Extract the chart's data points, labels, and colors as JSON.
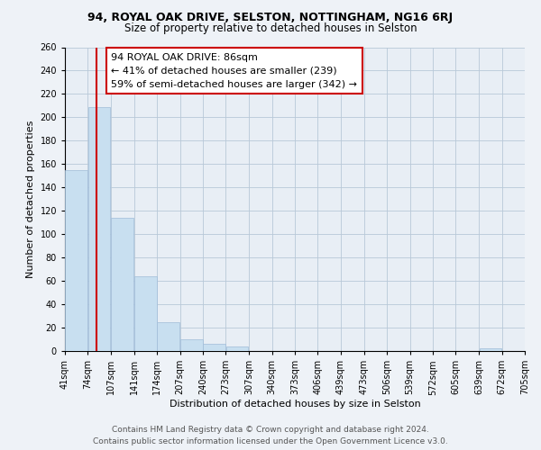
{
  "title": "94, ROYAL OAK DRIVE, SELSTON, NOTTINGHAM, NG16 6RJ",
  "subtitle": "Size of property relative to detached houses in Selston",
  "xlabel": "Distribution of detached houses by size in Selston",
  "ylabel": "Number of detached properties",
  "bar_edges": [
    41,
    74,
    107,
    141,
    174,
    207,
    240,
    273,
    307,
    340,
    373,
    406,
    439,
    473,
    506,
    539,
    572,
    605,
    639,
    672,
    705
  ],
  "bar_values": [
    155,
    209,
    114,
    64,
    25,
    10,
    6,
    4,
    0,
    0,
    0,
    0,
    0,
    0,
    0,
    0,
    0,
    0,
    2,
    0,
    0
  ],
  "bar_color": "#c8dff0",
  "bar_edge_color": "#a0bcd8",
  "property_line_x": 86,
  "property_line_color": "#cc0000",
  "annotation_text": "94 ROYAL OAK DRIVE: 86sqm\n← 41% of detached houses are smaller (239)\n59% of semi-detached houses are larger (342) →",
  "annotation_box_color": "#ffffff",
  "annotation_box_edge_color": "#cc0000",
  "ylim": [
    0,
    260
  ],
  "xlim": [
    41,
    705
  ],
  "tick_labels": [
    "41sqm",
    "74sqm",
    "107sqm",
    "141sqm",
    "174sqm",
    "207sqm",
    "240sqm",
    "273sqm",
    "307sqm",
    "340sqm",
    "373sqm",
    "406sqm",
    "439sqm",
    "473sqm",
    "506sqm",
    "539sqm",
    "572sqm",
    "605sqm",
    "639sqm",
    "672sqm",
    "705sqm"
  ],
  "footer_line1": "Contains HM Land Registry data © Crown copyright and database right 2024.",
  "footer_line2": "Contains public sector information licensed under the Open Government Licence v3.0.",
  "background_color": "#eef2f7",
  "plot_bg_color": "#e8eef5",
  "title_fontsize": 9,
  "subtitle_fontsize": 8.5,
  "axis_label_fontsize": 8,
  "tick_fontsize": 7,
  "footer_fontsize": 6.5,
  "annotation_fontsize": 8
}
